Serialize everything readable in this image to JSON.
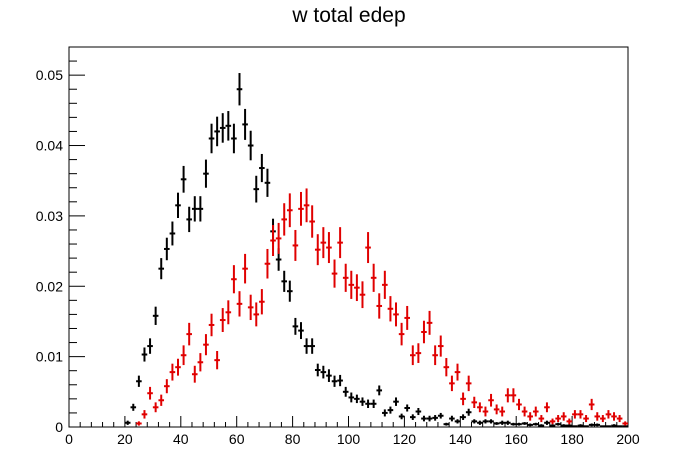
{
  "chart_data": {
    "type": "scatter",
    "title": "w total edep",
    "xlabel": "",
    "ylabel": "",
    "xlim": [
      0,
      200
    ],
    "ylim": [
      0,
      0.054
    ],
    "x_ticks": [
      "0",
      "20",
      "40",
      "60",
      "80",
      "100",
      "120",
      "140",
      "160",
      "180",
      "200"
    ],
    "y_ticks": [
      "0",
      "0.01",
      "0.02",
      "0.03",
      "0.04",
      "0.05"
    ],
    "grid": false,
    "bin_width": 2,
    "series": [
      {
        "color": "#000000",
        "x": [
          21,
          23,
          25,
          27,
          29,
          31,
          33,
          35,
          37,
          39,
          41,
          43,
          45,
          47,
          49,
          51,
          53,
          55,
          57,
          59,
          61,
          63,
          65,
          67,
          69,
          71,
          73,
          75,
          77,
          79,
          81,
          83,
          85,
          87,
          89,
          91,
          93,
          95,
          97,
          99,
          101,
          103,
          105,
          107,
          109,
          111,
          113,
          115,
          117,
          119,
          121,
          123,
          125,
          127,
          129,
          131,
          133,
          135,
          137,
          139,
          141,
          143,
          145,
          147,
          149,
          151,
          153,
          155,
          157,
          159,
          161,
          163,
          165,
          167,
          169,
          171,
          173,
          175,
          177,
          179,
          181,
          183,
          185,
          187,
          189,
          191,
          193,
          195,
          197,
          199
        ],
        "y": [
          0.0006,
          0.0028,
          0.0065,
          0.0103,
          0.0115,
          0.0158,
          0.0225,
          0.0253,
          0.0275,
          0.0315,
          0.0352,
          0.0295,
          0.031,
          0.031,
          0.036,
          0.041,
          0.042,
          0.0425,
          0.0428,
          0.041,
          0.048,
          0.043,
          0.04,
          0.0338,
          0.0368,
          0.0347,
          0.0278,
          0.0238,
          0.0207,
          0.0193,
          0.0143,
          0.0137,
          0.0115,
          0.0115,
          0.0081,
          0.0078,
          0.0073,
          0.0065,
          0.0066,
          0.005,
          0.0042,
          0.004,
          0.0036,
          0.0033,
          0.0033,
          0.0052,
          0.002,
          0.0024,
          0.0036,
          0.0015,
          0.0027,
          0.0014,
          0.0022,
          0.0012,
          0.0012,
          0.0013,
          0.0016,
          0.0004,
          0.0012,
          0.0008,
          0.0014,
          0.0021,
          0.0008,
          0.0006,
          0.0008,
          0.0008,
          0.0005,
          0.0006,
          0.0006,
          0.0004,
          0.0004,
          0.0005,
          0.0003,
          0.0004,
          0.0002,
          0.0006,
          0.0002,
          0.0004,
          0.0002,
          0.0002,
          0.0001,
          0.0002,
          0.0001,
          0.0003,
          0.0003,
          0.0001,
          0.0001,
          0.0002,
          0.0001,
          0.0001
        ],
        "yerr": [
          0.0003,
          0.0005,
          0.0008,
          0.001,
          0.0011,
          0.0013,
          0.0015,
          0.0016,
          0.0017,
          0.0018,
          0.0019,
          0.0018,
          0.0018,
          0.0018,
          0.002,
          0.0021,
          0.0021,
          0.0021,
          0.0021,
          0.0021,
          0.0023,
          0.0022,
          0.0021,
          0.0019,
          0.002,
          0.002,
          0.0018,
          0.0016,
          0.0015,
          0.0015,
          0.0012,
          0.0012,
          0.0011,
          0.0011,
          0.0009,
          0.0009,
          0.0009,
          0.0008,
          0.0008,
          0.0007,
          0.0007,
          0.0006,
          0.0006,
          0.0006,
          0.0006,
          0.0007,
          0.0005,
          0.0005,
          0.0006,
          0.0004,
          0.0005,
          0.0004,
          0.0005,
          0.0004,
          0.0004,
          0.0004,
          0.0004,
          0.0002,
          0.0004,
          0.0003,
          0.0004,
          0.0005,
          0.0003,
          0.0003,
          0.0003,
          0.0003,
          0.0002,
          0.0003,
          0.0003,
          0.0002,
          0.0002,
          0.0002,
          0.0002,
          0.0002,
          0.0002,
          0.0003,
          0.0002,
          0.0002,
          0.0002,
          0.0002,
          0.0001,
          0.0002,
          0.0001,
          0.0002,
          0.0002,
          0.0001,
          0.0001,
          0.0002,
          0.0001,
          0.0001
        ]
      },
      {
        "color": "#e00000",
        "x": [
          25,
          27,
          29,
          31,
          33,
          35,
          37,
          39,
          41,
          43,
          45,
          47,
          49,
          51,
          53,
          55,
          57,
          59,
          61,
          63,
          65,
          67,
          69,
          71,
          73,
          75,
          77,
          79,
          81,
          83,
          85,
          87,
          89,
          91,
          93,
          95,
          97,
          99,
          101,
          103,
          105,
          107,
          109,
          111,
          113,
          115,
          117,
          119,
          121,
          123,
          125,
          127,
          129,
          131,
          133,
          135,
          137,
          139,
          141,
          143,
          145,
          147,
          149,
          151,
          153,
          155,
          157,
          159,
          161,
          163,
          165,
          167,
          169,
          171,
          173,
          175,
          177,
          179,
          181,
          183,
          185,
          187,
          189,
          191,
          193,
          195,
          197,
          199
        ],
        "y": [
          0.0005,
          0.0018,
          0.0048,
          0.0028,
          0.0038,
          0.0058,
          0.0078,
          0.0085,
          0.0102,
          0.0132,
          0.0075,
          0.0092,
          0.0117,
          0.0145,
          0.0095,
          0.0152,
          0.0163,
          0.021,
          0.0175,
          0.0225,
          0.017,
          0.016,
          0.0178,
          0.0232,
          0.0265,
          0.0268,
          0.0295,
          0.0308,
          0.0258,
          0.031,
          0.0315,
          0.0292,
          0.0252,
          0.0262,
          0.0255,
          0.0218,
          0.0262,
          0.0212,
          0.0202,
          0.0198,
          0.0188,
          0.0255,
          0.0212,
          0.0172,
          0.0202,
          0.0168,
          0.016,
          0.0132,
          0.0155,
          0.0102,
          0.0105,
          0.0135,
          0.0148,
          0.0102,
          0.0115,
          0.0085,
          0.0062,
          0.0078,
          0.004,
          0.0062,
          0.0035,
          0.0028,
          0.0022,
          0.0038,
          0.0025,
          0.0022,
          0.0045,
          0.0045,
          0.0032,
          0.0022,
          0.0015,
          0.0022,
          0.0012,
          0.0028,
          0.0008,
          0.0012,
          0.0015,
          0.0008,
          0.0018,
          0.0018,
          0.0012,
          0.0032,
          0.0015,
          0.0012,
          0.0018,
          0.0015,
          0.0012,
          0.0005
        ],
        "yerr": [
          0.0003,
          0.0006,
          0.0009,
          0.0007,
          0.0008,
          0.001,
          0.0012,
          0.0012,
          0.0014,
          0.0016,
          0.0012,
          0.0013,
          0.0015,
          0.0016,
          0.0013,
          0.0017,
          0.0017,
          0.002,
          0.0018,
          0.0021,
          0.0018,
          0.0017,
          0.0018,
          0.0021,
          0.0022,
          0.0022,
          0.0023,
          0.0024,
          0.0022,
          0.0024,
          0.0024,
          0.0023,
          0.0022,
          0.0022,
          0.0022,
          0.002,
          0.0022,
          0.002,
          0.002,
          0.0019,
          0.0019,
          0.0022,
          0.002,
          0.0018,
          0.002,
          0.0018,
          0.0017,
          0.0016,
          0.0017,
          0.0014,
          0.0014,
          0.0016,
          0.0017,
          0.0014,
          0.0015,
          0.0013,
          0.0011,
          0.0012,
          0.0009,
          0.0011,
          0.0008,
          0.0007,
          0.0007,
          0.0009,
          0.0007,
          0.0007,
          0.001,
          0.001,
          0.0008,
          0.0007,
          0.0006,
          0.0007,
          0.0005,
          0.0007,
          0.0004,
          0.0005,
          0.0006,
          0.0004,
          0.0006,
          0.0006,
          0.0005,
          0.0008,
          0.0006,
          0.0005,
          0.0006,
          0.0006,
          0.0005,
          0.0003
        ]
      }
    ]
  }
}
